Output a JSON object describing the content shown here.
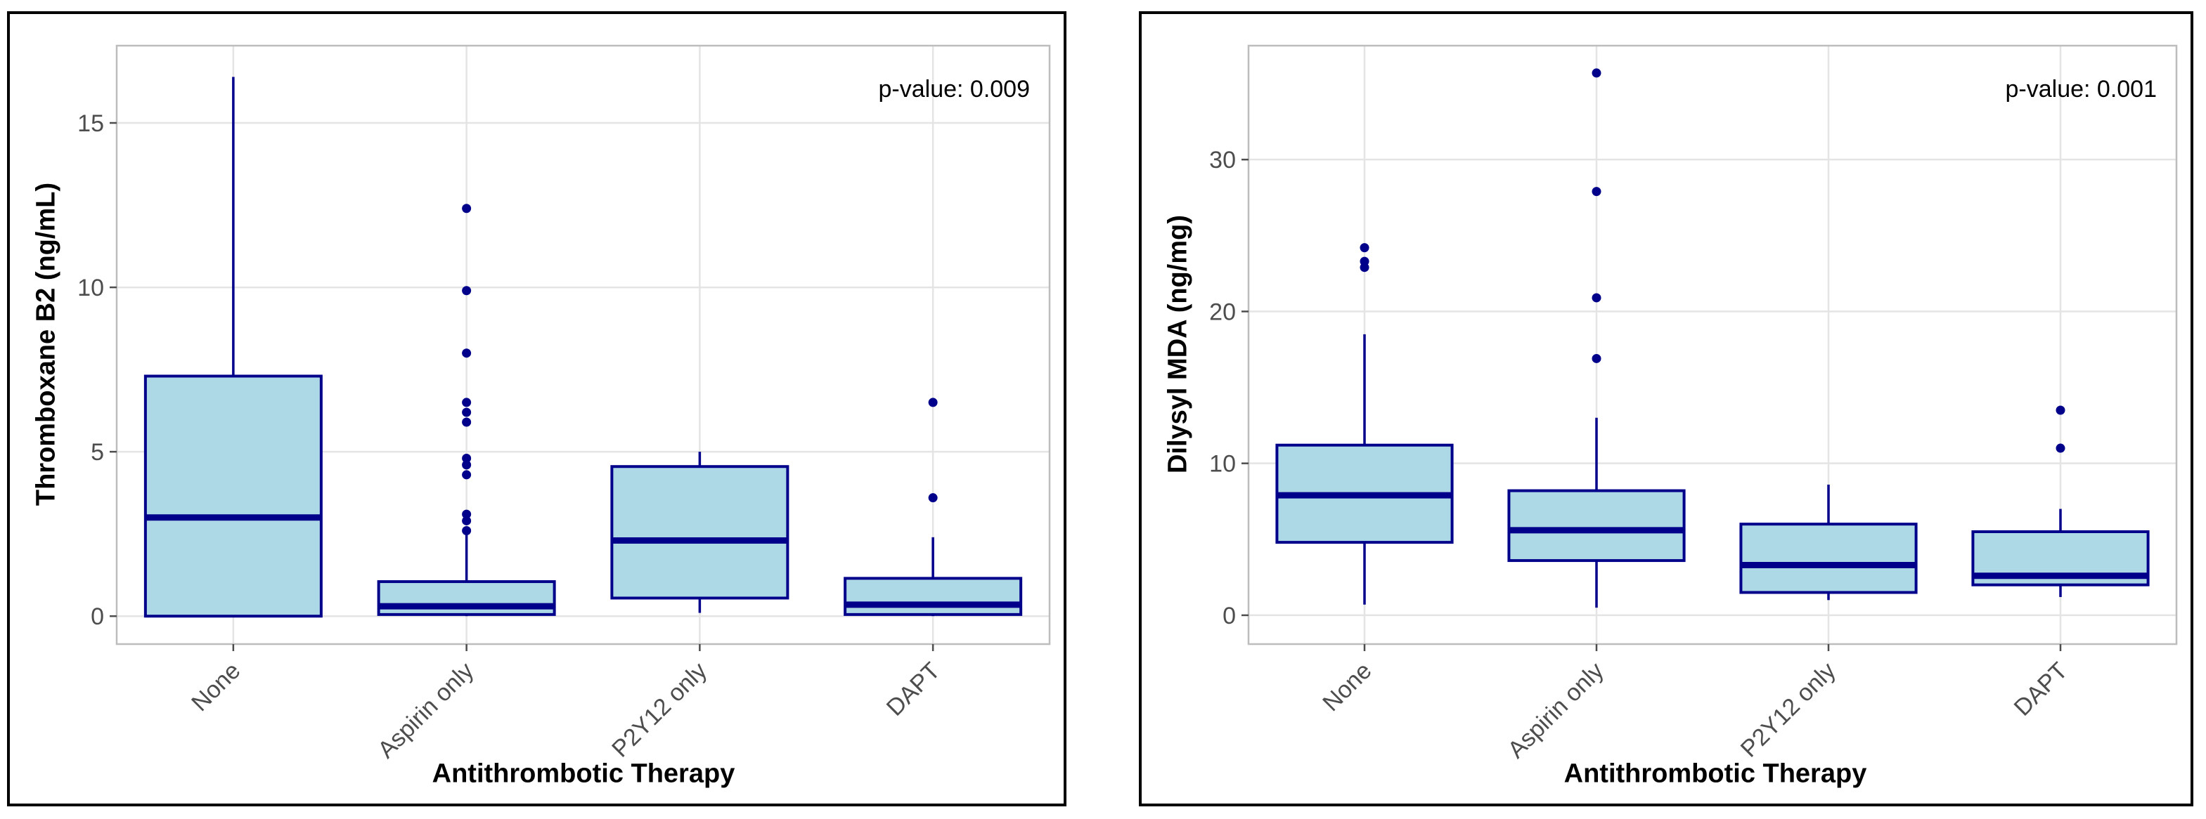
{
  "style": {
    "box_fill": "#ADD8E6",
    "box_stroke": "#00008B",
    "outlier_fill": "#00008B",
    "grid_color": "#E4E4E4",
    "panel_border": "#BDBDBD",
    "tick_color": "#4D4D4D",
    "tick_label_color": "#4D4D4D",
    "axis_title_color": "#000000",
    "figure_border": "#000000",
    "panel_background": "#FFFFFF"
  },
  "chart_data": [
    {
      "type": "box",
      "title": "",
      "xlabel": "Antithrombotic Therapy",
      "ylabel": "Thromboxane B2 (ng/mL)",
      "annotation": "p-value: 0.009",
      "grid": true,
      "legend": "none",
      "categories": [
        "None",
        "Aspirin only",
        "P2Y12 only",
        "DAPT"
      ],
      "y_ticks": [
        0,
        5,
        10,
        15
      ],
      "ylim": [
        -0.85,
        17.35
      ],
      "series": [
        {
          "category": "None",
          "low": 0,
          "q1": 0,
          "median": 3.0,
          "q3": 7.3,
          "high": 16.4,
          "outliers": []
        },
        {
          "category": "Aspirin only",
          "low": 0,
          "q1": 0.05,
          "median": 0.3,
          "q3": 1.05,
          "high": 2.5,
          "outliers": [
            2.6,
            2.9,
            3.1,
            4.3,
            4.6,
            4.8,
            5.9,
            6.2,
            6.5,
            8.0,
            9.9,
            12.4
          ]
        },
        {
          "category": "P2Y12 only",
          "low": 0.1,
          "q1": 0.55,
          "median": 2.3,
          "q3": 4.55,
          "high": 5.0,
          "outliers": []
        },
        {
          "category": "DAPT",
          "low": 0,
          "q1": 0.05,
          "median": 0.35,
          "q3": 1.15,
          "high": 2.4,
          "outliers": [
            3.6,
            6.5
          ]
        }
      ]
    },
    {
      "type": "box",
      "title": "",
      "xlabel": "Antithrombotic Therapy",
      "ylabel": "Dilysyl MDA (ng/mg)",
      "annotation": "p-value: 0.001",
      "grid": true,
      "legend": "none",
      "categories": [
        "None",
        "Aspirin only",
        "P2Y12 only",
        "DAPT"
      ],
      "y_ticks": [
        0,
        10,
        20,
        30
      ],
      "ylim": [
        -1.9,
        37.5
      ],
      "series": [
        {
          "category": "None",
          "low": 0.7,
          "q1": 4.8,
          "median": 7.9,
          "q3": 11.2,
          "high": 18.5,
          "outliers": [
            22.9,
            23.3,
            24.2
          ]
        },
        {
          "category": "Aspirin only",
          "low": 0.5,
          "q1": 3.6,
          "median": 5.6,
          "q3": 8.2,
          "high": 13.0,
          "outliers": [
            16.9,
            20.9,
            27.9,
            35.7
          ]
        },
        {
          "category": "P2Y12 only",
          "low": 1.0,
          "q1": 1.5,
          "median": 3.3,
          "q3": 6.0,
          "high": 8.6,
          "outliers": []
        },
        {
          "category": "DAPT",
          "low": 1.2,
          "q1": 2.0,
          "median": 2.6,
          "q3": 5.5,
          "high": 7.0,
          "outliers": [
            11.0,
            13.5
          ]
        }
      ]
    }
  ]
}
